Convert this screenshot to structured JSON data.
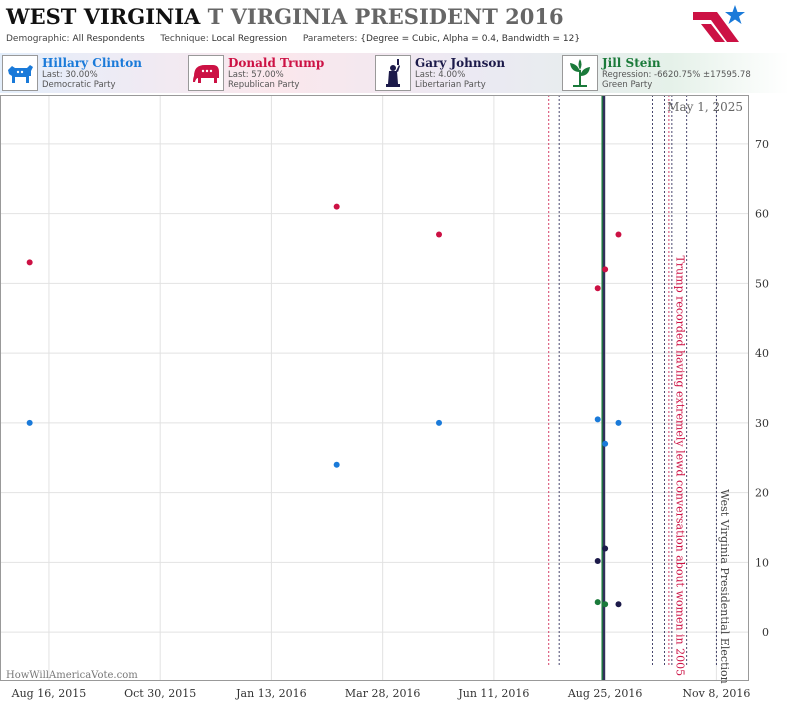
{
  "header": {
    "state": "WEST VIRGINIA",
    "office": "T VIRGINIA PRESIDENT 2016",
    "demographic_label": "Demographic:",
    "demographic_value": "All Respondents",
    "technique_label": "Technique:",
    "technique_value": "Local Regression",
    "parameters_label": "Parameters:",
    "parameters_value": "{Degree = Cubic, Alpha = 0.4, Bandwidth = 12}"
  },
  "candidates": [
    {
      "name": "Hillary Clinton",
      "stat": "Last: 30.00%",
      "party": "Democratic Party",
      "color": "#1a7ad9",
      "icon": "donkey-icon"
    },
    {
      "name": "Donald Trump",
      "stat": "Last: 57.00%",
      "party": "Republican Party",
      "color": "#cc1144",
      "icon": "elephant-icon"
    },
    {
      "name": "Gary Johnson",
      "stat": "Last: 4.00%",
      "party": "Libertarian Party",
      "color": "#1c1a4a",
      "icon": "liberty-icon"
    },
    {
      "name": "Jill Stein",
      "stat": "Regression: -6620.75% ±17595.78",
      "party": "Green Party",
      "color": "#1a7a3a",
      "icon": "plant-icon"
    }
  ],
  "watermark": "HowWillAmericaVote.com",
  "chart_data": {
    "type": "scatter",
    "date_label": "May 1, 2025",
    "x_range": [
      "2015-07-14",
      "2016-11-30"
    ],
    "ylim": [
      -7,
      77
    ],
    "yticks": [
      0,
      10,
      20,
      30,
      40,
      50,
      60,
      70
    ],
    "xticks": [
      {
        "date": "2015-08-16",
        "label": "Aug 16, 2015"
      },
      {
        "date": "2015-10-30",
        "label": "Oct 30, 2015"
      },
      {
        "date": "2016-01-13",
        "label": "Jan 13, 2016"
      },
      {
        "date": "2016-03-28",
        "label": "Mar 28, 2016"
      },
      {
        "date": "2016-06-11",
        "label": "Jun 11, 2016"
      },
      {
        "date": "2016-08-25",
        "label": "Aug 25, 2016"
      },
      {
        "date": "2016-11-08",
        "label": "Nov 8, 2016"
      }
    ],
    "grid": true,
    "series": [
      {
        "name": "Hillary Clinton",
        "color": "#1a7ad9",
        "points": [
          {
            "x": "2015-08-03",
            "y": 30
          },
          {
            "x": "2016-02-26",
            "y": 24
          },
          {
            "x": "2016-05-05",
            "y": 30
          },
          {
            "x": "2016-08-20",
            "y": 30.5
          },
          {
            "x": "2016-08-25",
            "y": 27
          },
          {
            "x": "2016-09-03",
            "y": 30
          }
        ]
      },
      {
        "name": "Donald Trump",
        "color": "#cc1144",
        "points": [
          {
            "x": "2015-08-03",
            "y": 53
          },
          {
            "x": "2016-02-26",
            "y": 61
          },
          {
            "x": "2016-05-05",
            "y": 57
          },
          {
            "x": "2016-08-20",
            "y": 49.3
          },
          {
            "x": "2016-08-25",
            "y": 52
          },
          {
            "x": "2016-09-03",
            "y": 57
          }
        ]
      },
      {
        "name": "Gary Johnson",
        "color": "#1c1a4a",
        "points": [
          {
            "x": "2016-08-20",
            "y": 10.2
          },
          {
            "x": "2016-08-25",
            "y": 12
          },
          {
            "x": "2016-09-03",
            "y": 4
          }
        ]
      },
      {
        "name": "Jill Stein",
        "color": "#1a7a3a",
        "points": [
          {
            "x": "2016-08-20",
            "y": 4.3
          },
          {
            "x": "2016-08-25",
            "y": 4
          }
        ]
      }
    ],
    "regression_lines": [
      {
        "name": "Gary Johnson",
        "x": "2016-08-24",
        "color": "#1c1a4a"
      },
      {
        "name": "Jill Stein",
        "x": "2016-08-23",
        "color": "#1a7a3a"
      }
    ],
    "event_lines": [
      {
        "x": "2016-07-18",
        "color": "#cc1144"
      },
      {
        "x": "2016-07-25",
        "color": "#1c1a4a"
      },
      {
        "x": "2016-09-26",
        "color": "#1c1a4a"
      },
      {
        "x": "2016-10-04",
        "color": "#1c1a4a"
      },
      {
        "x": "2016-10-07",
        "color": "#cc1144"
      },
      {
        "x": "2016-10-09",
        "color": "#1c1a4a"
      },
      {
        "x": "2016-10-19",
        "color": "#1c1a4a"
      },
      {
        "x": "2016-11-08",
        "color": "#1c1a4a"
      }
    ],
    "annotations": [
      {
        "x": "2016-10-12",
        "text": "Trump recorded having extremely lewd conversation about women in 2005",
        "color": "#cc1144"
      },
      {
        "x": "2016-11-11",
        "text": "West Virginia Presidential Election",
        "color": "#444444"
      }
    ]
  }
}
